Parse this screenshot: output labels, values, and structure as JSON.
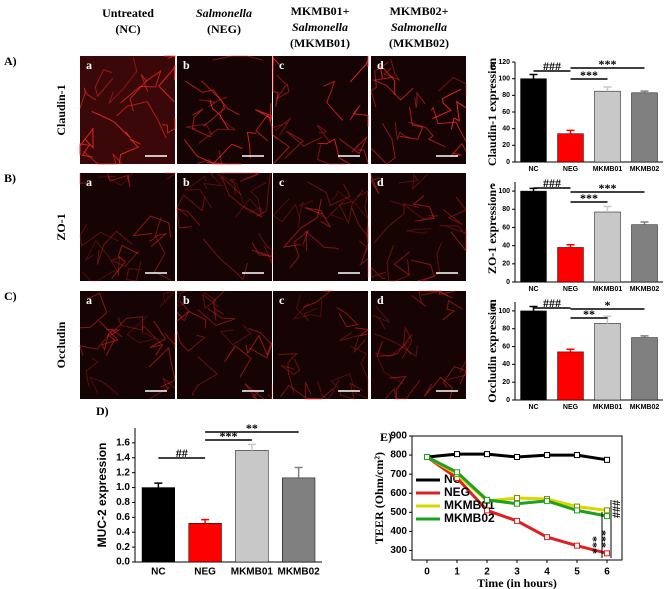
{
  "figure": {
    "columns": [
      [
        "Untreated",
        "(NC)"
      ],
      [
        "Salmonella",
        "(NEG)"
      ],
      [
        "MKMB01+",
        "Salmonella",
        "(MKMB01)"
      ],
      [
        "MKMB02+",
        "Salmonella",
        "(MKMB02)"
      ]
    ],
    "rows": [
      {
        "label": "A)",
        "name": "Claudin-1",
        "panels": [
          "a",
          "b",
          "c",
          "d"
        ]
      },
      {
        "label": "B)",
        "name": "ZO-1",
        "panels": [
          "a",
          "b",
          "c",
          "d"
        ]
      },
      {
        "label": "C)",
        "name": "Occludin",
        "panels": [
          "a",
          "b",
          "c",
          "d"
        ]
      }
    ]
  },
  "chart_data": [
    {
      "type": "bar",
      "panel": "e",
      "y_label": "Claudin-1 expression",
      "categories": [
        "NC",
        "NEG",
        "MKMB01",
        "MKMB02"
      ],
      "values": [
        100,
        34,
        85,
        83
      ],
      "errors": [
        5,
        4,
        5,
        2
      ],
      "colors": [
        "#000000",
        "#ff0000",
        "#c8c8c8",
        "#808080"
      ],
      "ylim": [
        0,
        120
      ],
      "yticks": [
        0,
        20,
        40,
        60,
        80,
        100,
        120
      ],
      "annotations": [
        "###",
        "***",
        "***"
      ]
    },
    {
      "type": "bar",
      "panel": "e",
      "y_label": "ZO-1 expression",
      "categories": [
        "NC",
        "NEG",
        "MKMB01",
        "MKMB02"
      ],
      "values": [
        100,
        38,
        77,
        63
      ],
      "errors": [
        3,
        3,
        6,
        3
      ],
      "colors": [
        "#000000",
        "#ff0000",
        "#c8c8c8",
        "#808080"
      ],
      "ylim": [
        0,
        110
      ],
      "yticks": [
        0,
        20,
        40,
        60,
        80,
        100
      ],
      "annotations": [
        "###",
        "***",
        "***"
      ]
    },
    {
      "type": "bar",
      "panel": "e",
      "y_label": "Occludin expression",
      "categories": [
        "NC",
        "NEG",
        "MKMB01",
        "MKMB02"
      ],
      "values": [
        100,
        54,
        86,
        70
      ],
      "errors": [
        5,
        3,
        8,
        2
      ],
      "colors": [
        "#000000",
        "#ff0000",
        "#c8c8c8",
        "#808080"
      ],
      "ylim": [
        0,
        110
      ],
      "yticks": [
        0,
        20,
        40,
        60,
        80,
        100
      ],
      "annotations": [
        "###",
        "**",
        "*"
      ]
    },
    {
      "type": "bar",
      "panel": "D)",
      "y_label": "MUC-2 expression",
      "categories": [
        "NC",
        "NEG",
        "MKMB01",
        "MKMB02"
      ],
      "values": [
        1.0,
        0.52,
        1.5,
        1.13
      ],
      "errors": [
        0.06,
        0.05,
        0.08,
        0.14
      ],
      "colors": [
        "#000000",
        "#ff0000",
        "#c8c8c8",
        "#808080"
      ],
      "ylim": [
        0,
        1.8
      ],
      "yticks": [
        {
          "value": 0,
          "label": "0.0"
        },
        {
          "value": 0.2,
          "label": "0.2"
        },
        {
          "value": 0.4,
          "label": "0.4"
        },
        {
          "value": 0.6,
          "label": "0.6"
        },
        {
          "value": 0.8,
          "label": "0.8"
        },
        {
          "value": 1,
          "label": "1.0"
        },
        {
          "value": 1.2,
          "label": "1.2"
        },
        {
          "value": 1.4,
          "label": "1.4"
        },
        {
          "value": 1.6,
          "label": "1.6"
        }
      ],
      "annotations": [
        "##",
        "***",
        "**"
      ]
    },
    {
      "type": "line",
      "panel": "E)",
      "y_label": "TEER (Ohm/cm²)",
      "x_label": "Time (in hours)",
      "x": [
        0,
        1,
        2,
        3,
        4,
        5,
        6
      ],
      "series": [
        {
          "name": "NC",
          "color": "#000000",
          "values": [
            790,
            805,
            805,
            790,
            800,
            800,
            775
          ]
        },
        {
          "name": "NEG",
          "color": "#e02020",
          "values": [
            790,
            680,
            510,
            455,
            370,
            325,
            285
          ]
        },
        {
          "name": "MKMB01",
          "color": "#d8d800",
          "values": [
            790,
            700,
            560,
            575,
            570,
            530,
            510
          ]
        },
        {
          "name": "MKMB02",
          "color": "#20a020",
          "values": [
            790,
            710,
            565,
            545,
            560,
            510,
            480
          ]
        }
      ],
      "xlim": [
        -0.5,
        6.5
      ],
      "xticks": [
        0,
        1,
        2,
        3,
        4,
        5,
        6
      ],
      "ylim": [
        250,
        900
      ],
      "yticks": [
        300,
        400,
        500,
        600,
        700,
        800,
        900
      ],
      "annotations": [
        "***",
        "***",
        "###"
      ]
    }
  ]
}
